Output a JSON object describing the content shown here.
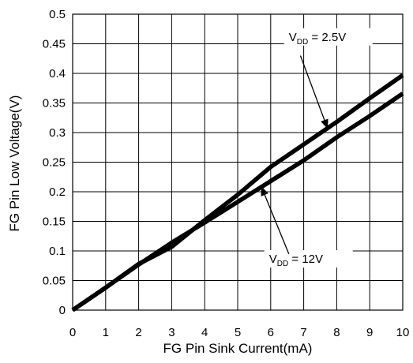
{
  "chart_data": {
    "type": "line",
    "title": "",
    "xlabel": "FG Pin Sink Current(mA)",
    "ylabel": "FG Pin Low Voltage(V)",
    "xlim": [
      0,
      10
    ],
    "ylim": [
      0,
      0.5
    ],
    "xticks": [
      "0",
      "1",
      "2",
      "3",
      "4",
      "5",
      "6",
      "7",
      "8",
      "9",
      "10"
    ],
    "yticks": [
      "0",
      "0.05",
      "0.1",
      "0.15",
      "0.2",
      "0.25",
      "0.3",
      "0.35",
      "0.4",
      "0.45",
      "0.5"
    ],
    "grid": true,
    "series": [
      {
        "name": "VDD = 2.5V",
        "x": [
          0,
          1,
          2,
          3,
          4,
          5,
          6,
          7,
          8,
          9,
          10
        ],
        "y": [
          0,
          0.038,
          0.078,
          0.107,
          0.152,
          0.195,
          0.242,
          0.28,
          0.318,
          0.358,
          0.397
        ]
      },
      {
        "name": "VDD = 12V",
        "x": [
          0,
          1,
          2,
          3,
          4,
          5,
          6,
          7,
          8,
          9,
          10
        ],
        "y": [
          0,
          0.038,
          0.077,
          0.114,
          0.148,
          0.183,
          0.218,
          0.253,
          0.292,
          0.328,
          0.366
        ]
      }
    ],
    "annotations": [
      {
        "label_main": "V",
        "label_sub": "DD",
        "label_rest": " = 2.5V",
        "series": 0
      },
      {
        "label_main": "V",
        "label_sub": "DD",
        "label_rest": " = 12V",
        "series": 1
      }
    ]
  }
}
